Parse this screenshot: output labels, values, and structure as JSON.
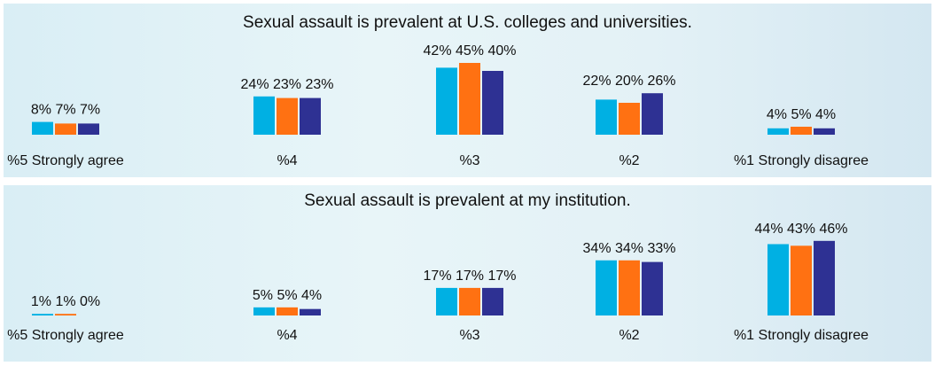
{
  "colors": {
    "series": [
      "#00b0e3",
      "#ff7112",
      "#2e3193"
    ]
  },
  "chart_data": [
    {
      "type": "bar",
      "title": "Sexual assault is prevalent at U.S. colleges and universities.",
      "categories": [
        "%5 Strongly agree",
        "%4",
        "%3",
        "%2",
        "%1 Strongly disagree"
      ],
      "series": [
        {
          "values": [
            8,
            24,
            42,
            22,
            4
          ]
        },
        {
          "values": [
            7,
            23,
            45,
            20,
            5
          ]
        },
        {
          "values": [
            7,
            23,
            40,
            26,
            4
          ]
        }
      ],
      "value_suffix": "%",
      "ylim": [
        0,
        45
      ],
      "grid": false
    },
    {
      "type": "bar",
      "title": "Sexual assault is prevalent at my institution.",
      "categories": [
        "%5 Strongly agree",
        "%4",
        "%3",
        "%2",
        "%1 Strongly disagree"
      ],
      "series": [
        {
          "values": [
            1,
            5,
            17,
            34,
            44
          ]
        },
        {
          "values": [
            1,
            5,
            17,
            34,
            43
          ]
        },
        {
          "values": [
            0,
            4,
            17,
            33,
            46
          ]
        }
      ],
      "value_suffix": "%",
      "ylim": [
        0,
        46
      ],
      "grid": false
    }
  ]
}
